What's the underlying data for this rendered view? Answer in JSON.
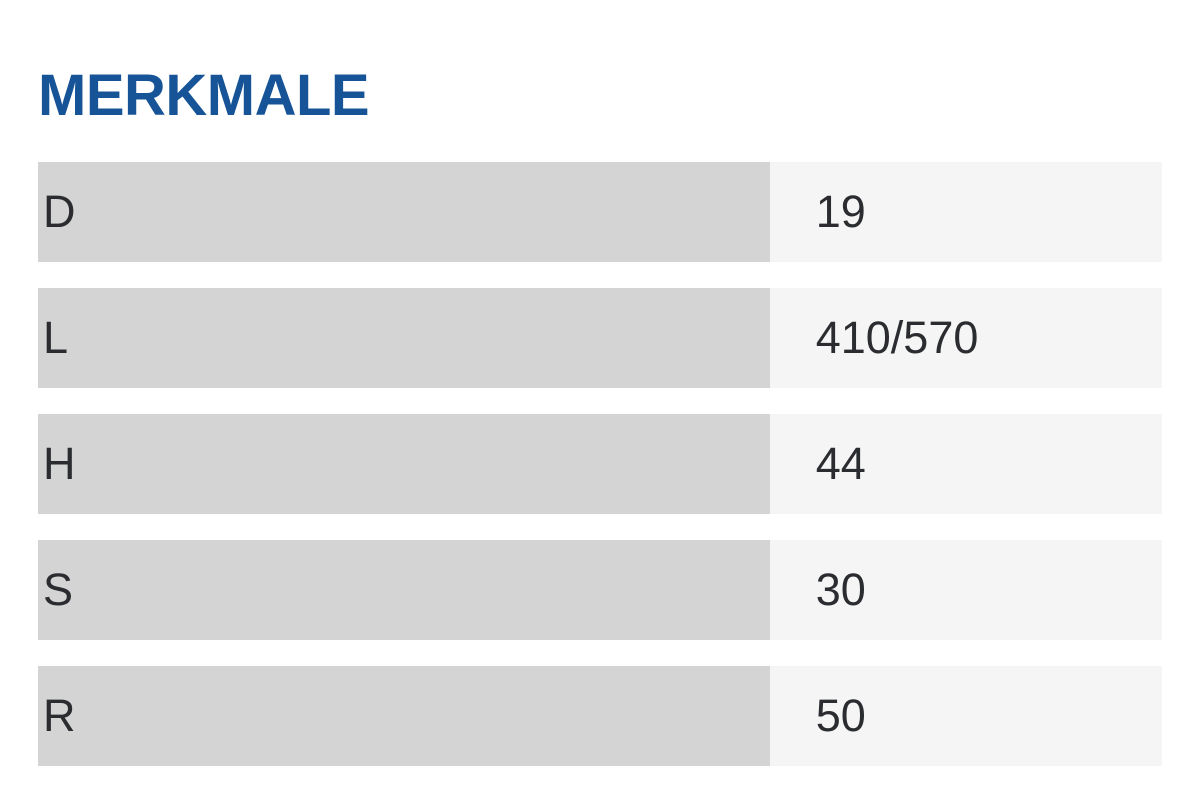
{
  "page": {
    "title": "MERKMALE"
  },
  "colors": {
    "title_blue": "#165497",
    "label_cell_bg": "#d4d4d4",
    "value_cell_bg": "#f5f5f5",
    "text_dark": "#2a2c30",
    "page_bg": "#ffffff"
  },
  "table": {
    "rows": [
      {
        "label": "D",
        "value": "19"
      },
      {
        "label": "L",
        "value": "410/570"
      },
      {
        "label": "H",
        "value": "44"
      },
      {
        "label": "S",
        "value": "30"
      },
      {
        "label": "R",
        "value": "50"
      }
    ]
  }
}
